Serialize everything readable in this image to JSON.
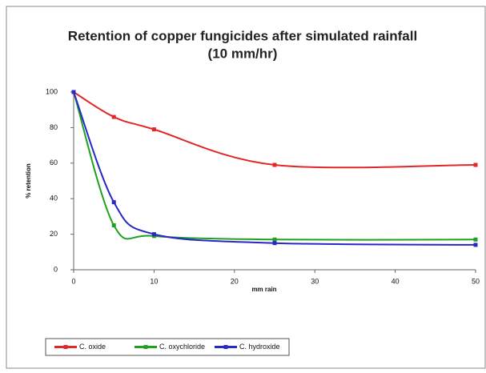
{
  "chart_data": {
    "type": "line",
    "title": [
      "Retention of copper fungicides after simulated rainfall",
      "(10 mm/hr)"
    ],
    "x_label": "mm rain",
    "y_label": "% retention",
    "x": [
      0,
      5,
      10,
      25,
      50
    ],
    "series": [
      {
        "name": "C. oxide",
        "color": "#e02828",
        "values": [
          100,
          86,
          79,
          59,
          59
        ]
      },
      {
        "name": "C. oxychloride",
        "color": "#22a022",
        "values": [
          100,
          25,
          19,
          17,
          17
        ]
      },
      {
        "name": "C. hydroxide",
        "color": "#2828c8",
        "values": [
          100,
          38,
          20,
          15,
          14
        ]
      }
    ],
    "xlim": [
      0,
      50
    ],
    "xticks": [
      0,
      10,
      20,
      30,
      40,
      50
    ],
    "ylim": [
      0,
      100
    ],
    "yticks": [
      0,
      20,
      40,
      60,
      80,
      100
    ],
    "smooth": true,
    "legend": "bottom"
  }
}
